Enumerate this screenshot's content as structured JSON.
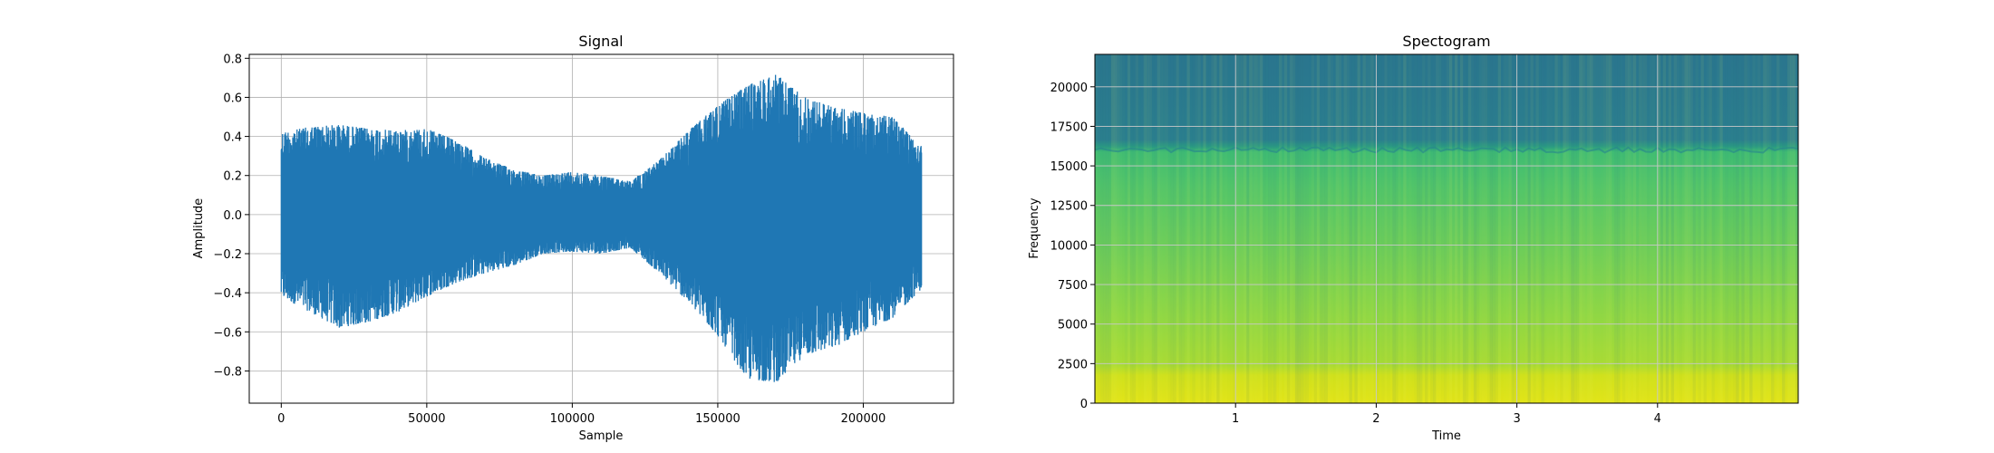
{
  "chart_data": [
    {
      "type": "line",
      "title": "Signal",
      "xlabel": "Sample",
      "ylabel": "Amplitude",
      "xlim": [
        -11000,
        231000
      ],
      "ylim": [
        -0.965,
        0.82
      ],
      "x_ticks": [
        0,
        50000,
        100000,
        150000,
        200000
      ],
      "x_tick_labels": [
        "0",
        "50000",
        "100000",
        "150000",
        "200000"
      ],
      "y_ticks": [
        -0.8,
        -0.6,
        -0.4,
        -0.2,
        0.0,
        0.2,
        0.4,
        0.6,
        0.8
      ],
      "y_tick_labels": [
        "−0.8",
        "−0.6",
        "−0.4",
        "−0.2",
        "0.0",
        "0.2",
        "0.4",
        "0.6",
        "0.8"
      ],
      "grid": true,
      "color": "#1f77b4",
      "series": [
        {
          "x": [
            0,
            10000,
            20000,
            30000,
            40000,
            50000,
            60000,
            70000,
            80000,
            90000,
            100000,
            110000,
            120000,
            130000,
            140000,
            150000,
            160000,
            170000,
            180000,
            190000,
            200000,
            210000,
            220000
          ],
          "y_max": [
            0.42,
            0.45,
            0.46,
            0.44,
            0.43,
            0.44,
            0.38,
            0.29,
            0.23,
            0.2,
            0.22,
            0.2,
            0.17,
            0.28,
            0.43,
            0.56,
            0.66,
            0.72,
            0.6,
            0.55,
            0.52,
            0.5,
            0.36
          ],
          "y_min": [
            -0.42,
            -0.5,
            -0.58,
            -0.55,
            -0.5,
            -0.42,
            -0.35,
            -0.3,
            -0.26,
            -0.2,
            -0.19,
            -0.2,
            -0.17,
            -0.3,
            -0.45,
            -0.62,
            -0.84,
            -0.86,
            -0.72,
            -0.68,
            -0.6,
            -0.53,
            -0.38
          ]
        }
      ]
    },
    {
      "type": "heatmap",
      "title": "Spectogram",
      "xlabel": "Time",
      "ylabel": "Frequency",
      "xlim": [
        0,
        5.0
      ],
      "ylim": [
        0,
        22050
      ],
      "x_ticks": [
        1,
        2,
        3,
        4
      ],
      "x_tick_labels": [
        "1",
        "2",
        "3",
        "4"
      ],
      "y_ticks": [
        0,
        2500,
        5000,
        7500,
        10000,
        12500,
        15000,
        17500,
        20000
      ],
      "y_tick_labels": [
        "0",
        "2500",
        "5000",
        "7500",
        "10000",
        "12500",
        "15000",
        "17500",
        "20000"
      ],
      "grid": true,
      "colormap": "viridis",
      "frequency_bands": [
        {
          "range": [
            0,
            2200
          ],
          "color": "#d8e219"
        },
        {
          "range": [
            2200,
            6000
          ],
          "color": "#9fda3a"
        },
        {
          "range": [
            6000,
            10000
          ],
          "color": "#74d055"
        },
        {
          "range": [
            10000,
            16000
          ],
          "color": "#4ac16d"
        },
        {
          "range": [
            16000,
            22050
          ],
          "color": "#2a788e"
        }
      ]
    }
  ]
}
